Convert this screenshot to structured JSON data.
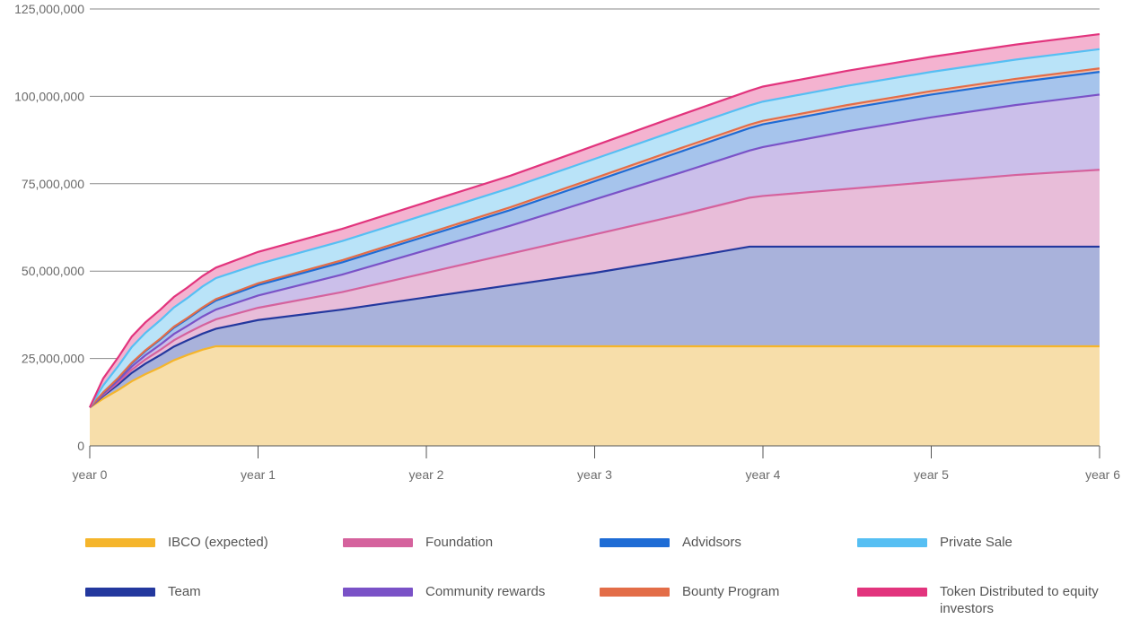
{
  "chart_data": {
    "type": "area",
    "stacked": true,
    "grid": true,
    "legend_position": "bottom",
    "y_ticks": [
      "125,000,000",
      "100,000,000",
      "75,000,000",
      "50,000,000",
      "25,000,000",
      "0"
    ],
    "x_ticks": [
      "year 0",
      "year 1",
      "year 2",
      "year 3",
      "year 4",
      "year 5",
      "year 6"
    ],
    "ylim": [
      0,
      125000000
    ],
    "xlim": [
      0,
      6
    ],
    "x": [
      0,
      0.08,
      0.17,
      0.25,
      0.33,
      0.42,
      0.5,
      0.58,
      0.67,
      0.75,
      1,
      1.5,
      2,
      2.5,
      3,
      3.5,
      3.92,
      4,
      4.5,
      5,
      5.5,
      6
    ],
    "series": [
      {
        "name": "IBCO (expected)",
        "color": "#F5B52B",
        "fill": "#F7DEAA",
        "values": [
          11000000,
          13500000,
          16000000,
          18500000,
          20500000,
          22500000,
          24500000,
          26000000,
          27500000,
          28500000,
          28500000,
          28500000,
          28500000,
          28500000,
          28500000,
          28500000,
          28500000,
          28500000,
          28500000,
          28500000,
          28500000,
          28500000
        ]
      },
      {
        "name": "Team",
        "color": "#23389E",
        "fill": "#A9B2DB",
        "values": [
          0,
          800000,
          1600000,
          2400000,
          3000000,
          3500000,
          3900000,
          4200000,
          4600000,
          5000000,
          7500000,
          10500000,
          14000000,
          17500000,
          21000000,
          25000000,
          28500000,
          28500000,
          28500000,
          28500000,
          28500000,
          28500000
        ]
      },
      {
        "name": "Foundation",
        "color": "#D5629D",
        "fill": "#E8BDD9",
        "values": [
          0,
          300000,
          600000,
          900000,
          1200000,
          1500000,
          1800000,
          2100000,
          2400000,
          2700000,
          3500000,
          5000000,
          7000000,
          9000000,
          11000000,
          12500000,
          14000000,
          14500000,
          16500000,
          18500000,
          20500000,
          22000000
        ]
      },
      {
        "name": "Community rewards",
        "color": "#7A52C7",
        "fill": "#CBBFEA",
        "values": [
          0,
          300000,
          600000,
          900000,
          1200000,
          1500000,
          1800000,
          2000000,
          2500000,
          2800000,
          3500000,
          5000000,
          6500000,
          8000000,
          10000000,
          12000000,
          13500000,
          14000000,
          16500000,
          18500000,
          20000000,
          21500000
        ]
      },
      {
        "name": "Advidsors",
        "color": "#1E6CD5",
        "fill": "#A6C4EC",
        "values": [
          0,
          300000,
          600000,
          900000,
          1200000,
          1500000,
          1800000,
          2000000,
          2300000,
          2600000,
          3000000,
          3500000,
          4000000,
          4500000,
          5200000,
          6000000,
          6400000,
          6500000,
          6500000,
          6500000,
          6500000,
          6500000
        ]
      },
      {
        "name": "Bounty Program",
        "color": "#E36D48",
        "fill": "#F1C2B3",
        "values": [
          0,
          100000,
          100000,
          200000,
          200000,
          200000,
          300000,
          300000,
          300000,
          400000,
          500000,
          600000,
          700000,
          800000,
          900000,
          1000000,
          1000000,
          1000000,
          1000000,
          1000000,
          1000000,
          1000000
        ]
      },
      {
        "name": "Private Sale",
        "color": "#56BFF3",
        "fill": "#B9E3F8",
        "values": [
          0,
          2000000,
          3400000,
          4500000,
          5000000,
          5300000,
          5500000,
          5700000,
          6000000,
          6000000,
          5500000,
          5500000,
          5500000,
          5500000,
          5500000,
          5500000,
          5500000,
          5500000,
          5500000,
          5500000,
          5500000,
          5500000
        ]
      },
      {
        "name": "Token Distributed to equity investors",
        "color": "#E2347D",
        "fill": "#F4B3D0",
        "values": [
          0,
          2000000,
          2500000,
          3000000,
          3000000,
          3000000,
          3000000,
          3000000,
          3000000,
          3000000,
          3500000,
          3500000,
          3500000,
          3500000,
          3800000,
          4000000,
          4200000,
          4300000,
          4300000,
          4300000,
          4300000,
          4300000
        ]
      }
    ]
  }
}
